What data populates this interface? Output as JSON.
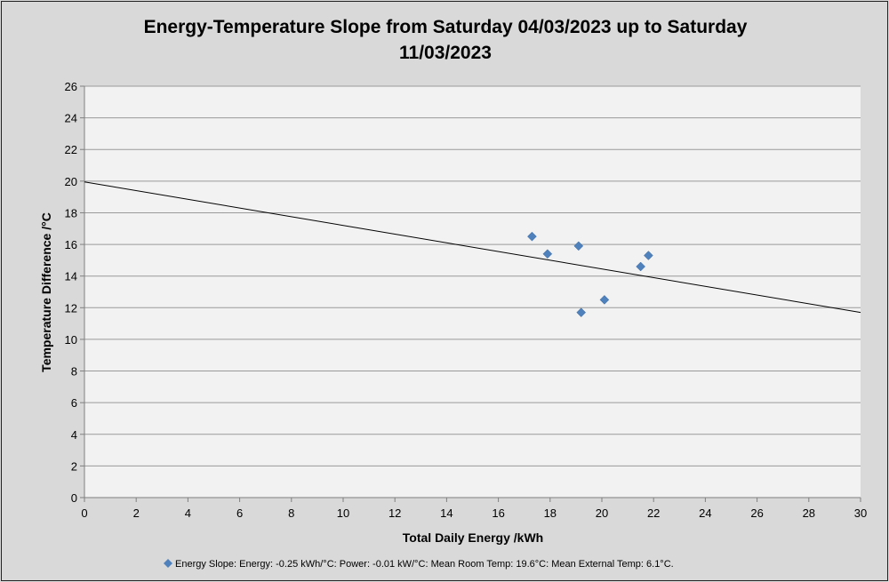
{
  "chart_data": {
    "type": "scatter",
    "title_lines": [
      "Energy-Temperature Slope from Saturday 04/03/2023 up to Saturday",
      "11/03/2023"
    ],
    "xlabel": "Total Daily Energy /kWh",
    "ylabel": "Temperature Difference /°C",
    "xlim": [
      0,
      30
    ],
    "ylim": [
      0,
      26
    ],
    "x_ticks": [
      0,
      2,
      4,
      6,
      8,
      10,
      12,
      14,
      16,
      18,
      20,
      22,
      24,
      26,
      28,
      30
    ],
    "y_ticks": [
      0,
      2,
      4,
      6,
      8,
      10,
      12,
      14,
      16,
      18,
      20,
      22,
      24,
      26
    ],
    "grid": "horizontal",
    "legend_position": "bottom",
    "series": [
      {
        "name": "Energy Slope: Energy: -0.25 kWh/°C: Power: -0.01 kW/°C: Mean Room Temp: 19.6°C: Mean External Temp: 6.1°C.",
        "color": "#4f81bd",
        "marker": "diamond",
        "points": [
          {
            "x": 17.3,
            "y": 16.5
          },
          {
            "x": 17.9,
            "y": 15.4
          },
          {
            "x": 19.1,
            "y": 15.9
          },
          {
            "x": 19.2,
            "y": 11.7
          },
          {
            "x": 20.1,
            "y": 12.5
          },
          {
            "x": 21.5,
            "y": 14.6
          },
          {
            "x": 21.8,
            "y": 15.3
          }
        ]
      }
    ],
    "trendline": {
      "x": [
        0,
        30
      ],
      "y": [
        19.95,
        11.7
      ],
      "color": "#000000"
    }
  }
}
